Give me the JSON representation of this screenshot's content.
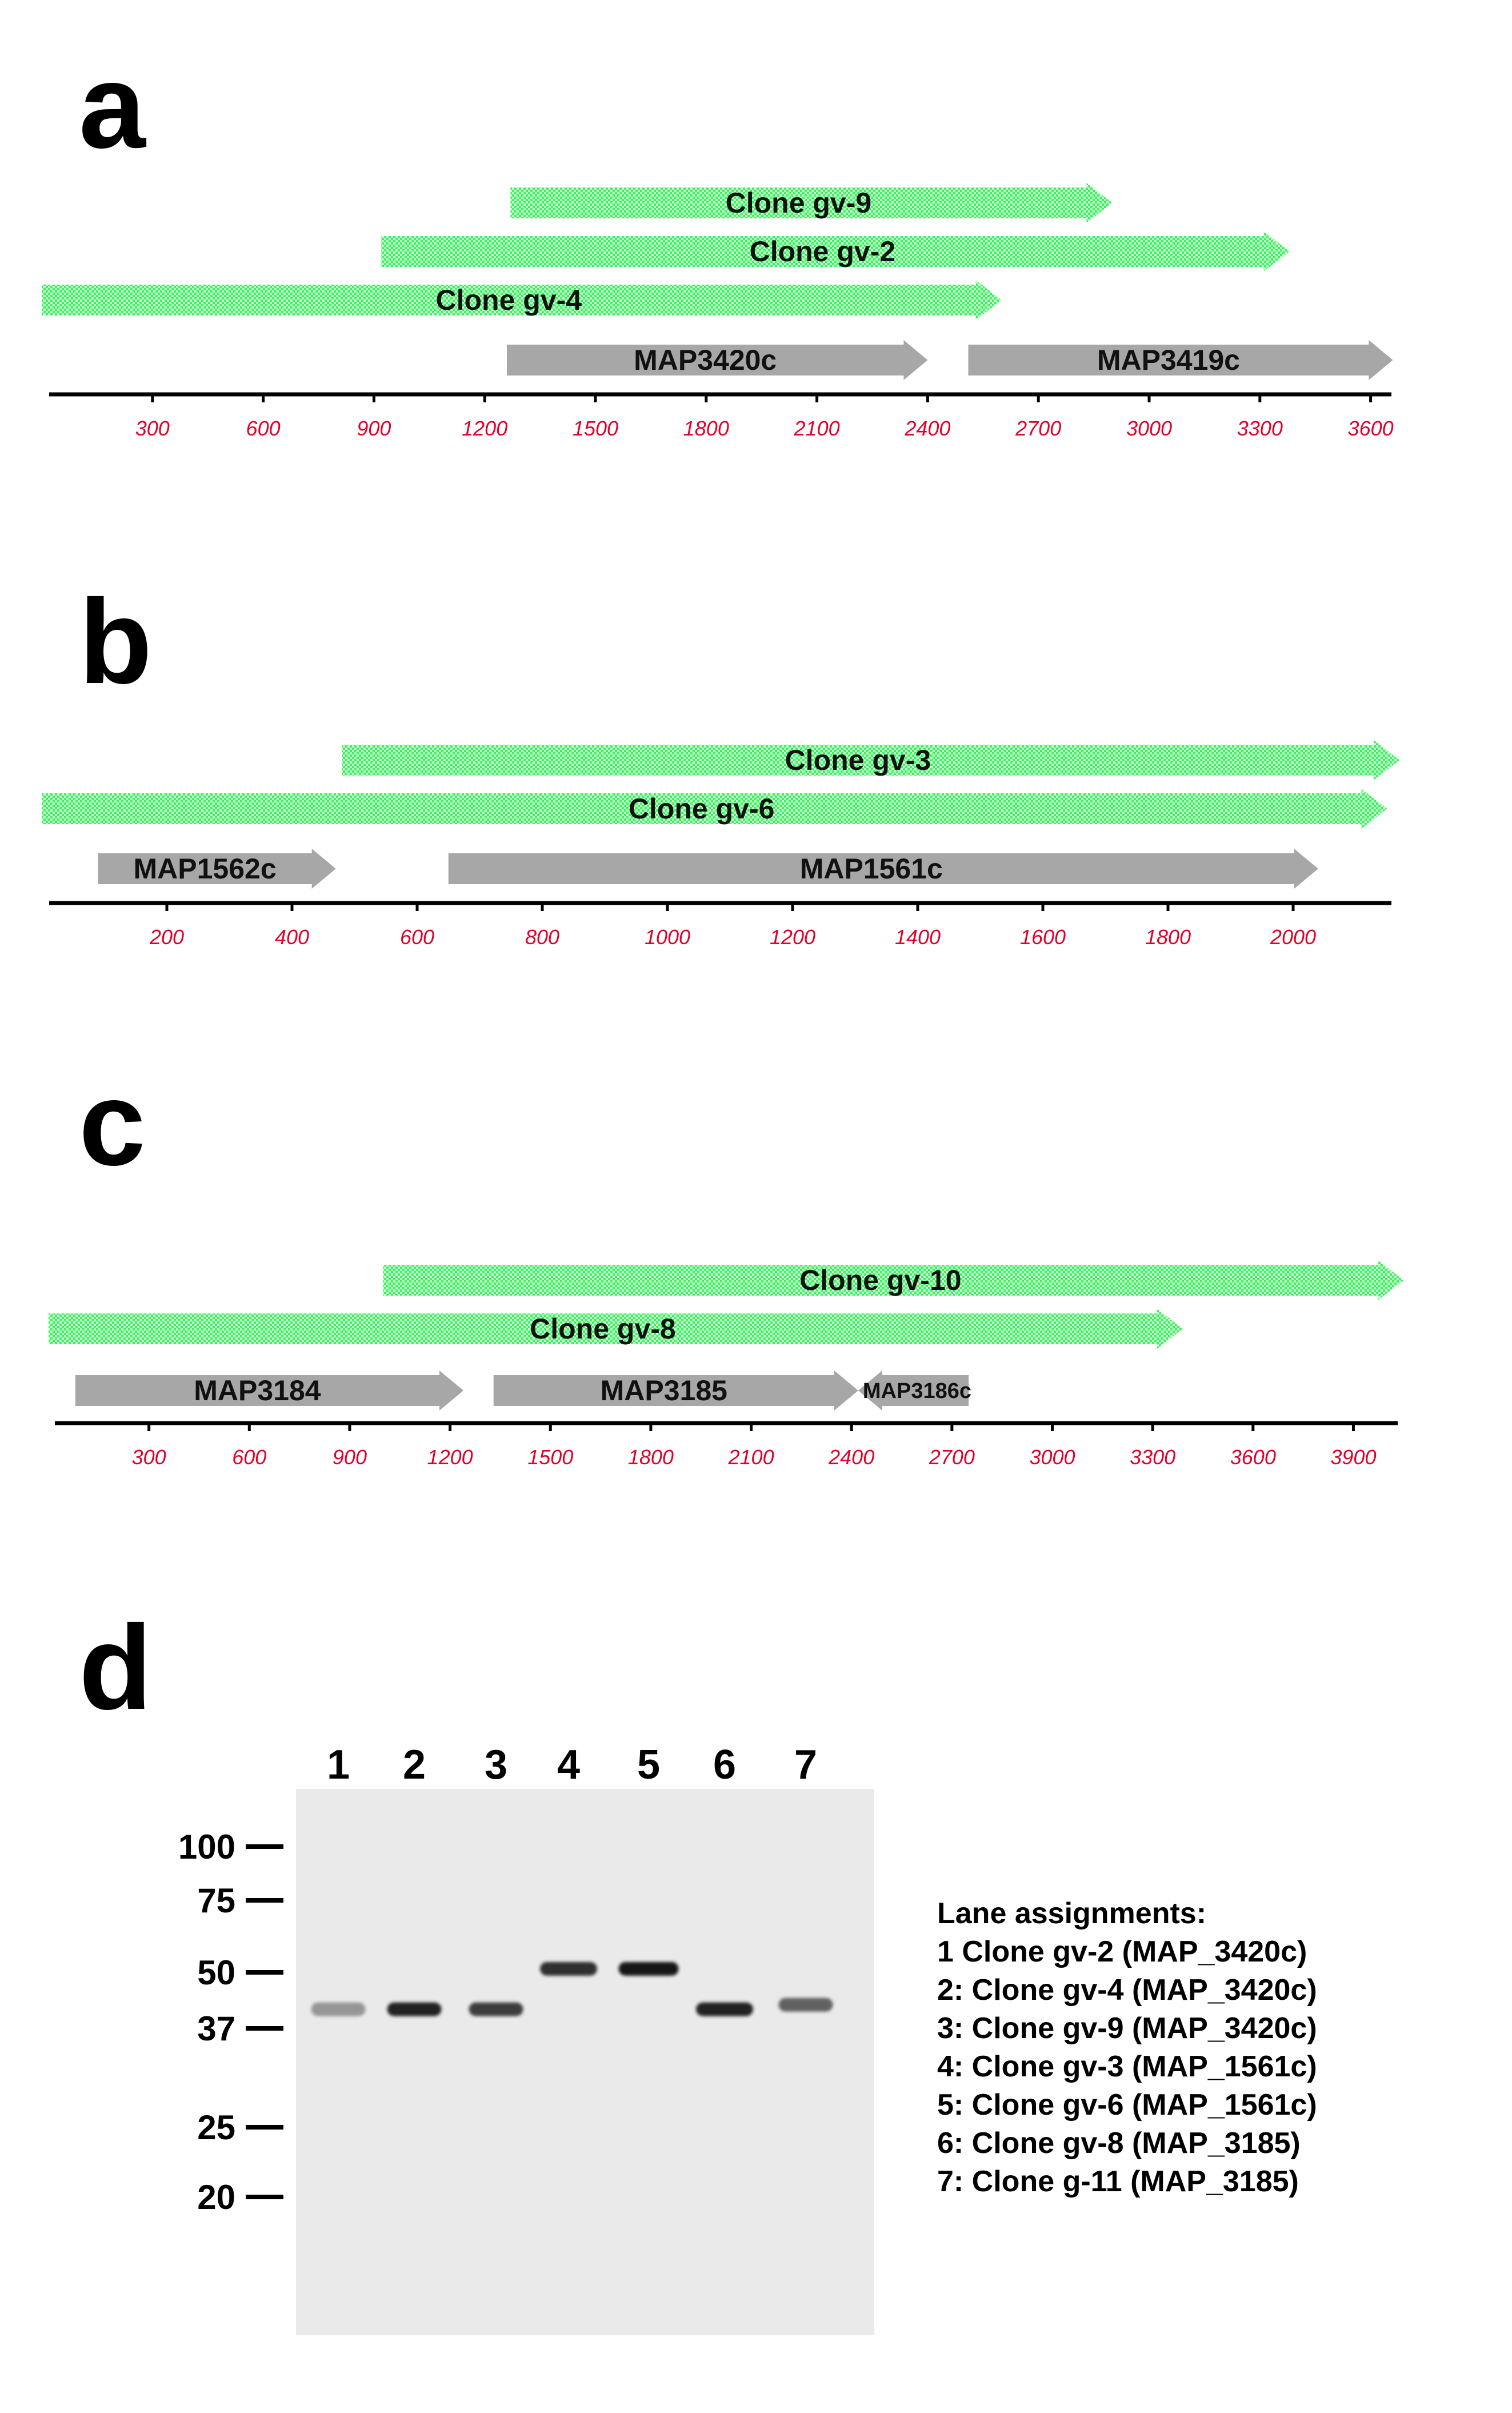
{
  "colors": {
    "clone_fill": "#3cf25e",
    "clone_pattern_light": "#c8ffd2",
    "gene_fill": "#a7a7a7",
    "tick_label": "#e0002a",
    "gel_background": "#eaeaea",
    "band": "#111111"
  },
  "panels": [
    {
      "letter": "a",
      "axis_ticks": [
        300,
        600,
        900,
        1200,
        1500,
        1800,
        2100,
        2400,
        2700,
        3000,
        3300,
        3600
      ],
      "clones": [
        {
          "label": "Clone gv-9",
          "start": 1270,
          "end": 2900
        },
        {
          "label": "Clone gv-2",
          "start": 920,
          "end": 3380
        },
        {
          "label": "Clone gv-4",
          "start": 0,
          "end": 2600
        }
      ],
      "genes": [
        {
          "label": "MAP3420c",
          "start": 1260,
          "end": 2400,
          "direction": "right"
        },
        {
          "label": "MAP3419c",
          "start": 2510,
          "end": 3660,
          "direction": "right"
        }
      ]
    },
    {
      "letter": "b",
      "axis_ticks": [
        200,
        400,
        600,
        800,
        1000,
        1200,
        1400,
        1600,
        1800,
        2000
      ],
      "clones": [
        {
          "label": "Clone gv-3",
          "start": 480,
          "end": 2170
        },
        {
          "label": "Clone gv-6",
          "start": 0,
          "end": 2150
        }
      ],
      "genes": [
        {
          "label": "MAP1562c",
          "start": 90,
          "end": 470,
          "direction": "right"
        },
        {
          "label": "MAP1561c",
          "start": 650,
          "end": 2040,
          "direction": "right"
        }
      ]
    },
    {
      "letter": "c",
      "axis_ticks": [
        300,
        600,
        900,
        1200,
        1500,
        1800,
        2100,
        2400,
        2700,
        3000,
        3300,
        3600,
        3900
      ],
      "clones": [
        {
          "label": "Clone gv-10",
          "start": 1000,
          "end": 4050
        },
        {
          "label": "Clone gv-8",
          "start": 0,
          "end": 3390
        }
      ],
      "genes": [
        {
          "label": "MAP3184",
          "start": 80,
          "end": 1240,
          "direction": "right"
        },
        {
          "label": "MAP3185",
          "start": 1330,
          "end": 2420,
          "direction": "right"
        },
        {
          "label": "MAP3186c",
          "start": 2420,
          "end": 2750,
          "direction": "left"
        }
      ]
    }
  ],
  "gel": {
    "letter": "d",
    "lanes": [
      "1",
      "2",
      "3",
      "4",
      "5",
      "6",
      "7"
    ],
    "markers": [
      "100",
      "75",
      "50",
      "37",
      "25",
      "20"
    ],
    "bands": [
      {
        "lane": "1",
        "kda": 41,
        "intensity": 0.45
      },
      {
        "lane": "2",
        "kda": 41,
        "intensity": 0.95
      },
      {
        "lane": "3",
        "kda": 41,
        "intensity": 0.85
      },
      {
        "lane": "4",
        "kda": 51,
        "intensity": 0.9
      },
      {
        "lane": "5",
        "kda": 51,
        "intensity": 1.0
      },
      {
        "lane": "6",
        "kda": 41,
        "intensity": 0.95
      },
      {
        "lane": "7",
        "kda": 42,
        "intensity": 0.7
      }
    ],
    "legend": {
      "title": "Lane assignments:",
      "items": [
        "1 Clone gv-2 (MAP_3420c)",
        "2: Clone gv-4 (MAP_3420c)",
        "3: Clone gv-9 (MAP_3420c)",
        "4: Clone gv-3 (MAP_1561c)",
        "5: Clone gv-6 (MAP_1561c)",
        "6: Clone gv-8 (MAP_3185)",
        "7: Clone g-11 (MAP_3185)"
      ]
    }
  }
}
